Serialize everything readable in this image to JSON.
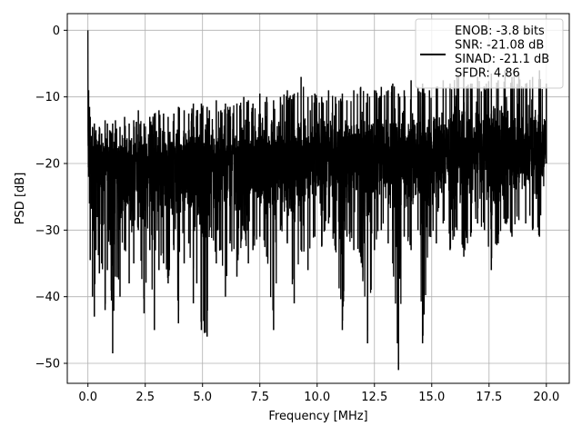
{
  "chart_data": {
    "type": "line",
    "title": "",
    "xlabel": "Frequency [MHz]",
    "ylabel": "PSD [dB]",
    "xlim": [
      -0.9,
      21.0
    ],
    "ylim": [
      -53.0,
      2.5
    ],
    "xticks": [
      0.0,
      2.5,
      5.0,
      7.5,
      10.0,
      12.5,
      15.0,
      17.5,
      20.0
    ],
    "xtick_labels": [
      "0.0",
      "2.5",
      "5.0",
      "7.5",
      "10.0",
      "12.5",
      "15.0",
      "17.5",
      "20.0"
    ],
    "yticks": [
      0,
      -10,
      -20,
      -30,
      -40,
      -50
    ],
    "ytick_labels": [
      "0",
      "−10",
      "−20",
      "−30",
      "−40",
      "−50"
    ],
    "grid": true,
    "legend": {
      "placement": "top-right",
      "lines": [
        "ENOB: -3.8 bits",
        "SNR: -21.08 dB",
        "SINAD: -21.1 dB",
        "SFDR: 4.86"
      ]
    },
    "series": [
      {
        "color": "#000000",
        "description": "dense noise floor spectrum from 0 to 20 MHz",
        "x": [
          0.0,
          0.03,
          0.07,
          0.1,
          0.2,
          0.28,
          0.35,
          0.5,
          0.6,
          0.75,
          0.85,
          0.95,
          1.08,
          1.2,
          1.4,
          1.6,
          1.8,
          2.0,
          2.2,
          2.45,
          2.7,
          2.9,
          3.1,
          3.3,
          3.5,
          3.75,
          3.95,
          4.2,
          4.4,
          4.6,
          4.75,
          4.95,
          5.2,
          5.3,
          5.6,
          5.8,
          6.0,
          6.2,
          6.5,
          6.8,
          7.0,
          7.2,
          7.5,
          7.8,
          8.1,
          8.4,
          8.7,
          9.0,
          9.3,
          9.6,
          9.9,
          10.2,
          10.5,
          10.8,
          11.1,
          11.3,
          11.6,
          11.9,
          12.2,
          12.5,
          12.8,
          13.1,
          13.3,
          13.55,
          13.8,
          14.1,
          14.4,
          14.6,
          14.9,
          15.2,
          15.5,
          15.8,
          16.1,
          16.4,
          16.7,
          17.0,
          17.3,
          17.6,
          17.9,
          18.2,
          18.5,
          18.8,
          19.1,
          19.4,
          19.7,
          20.0
        ],
        "upper": [
          0.0,
          -9.0,
          -11.5,
          -13.0,
          -14.5,
          -14.0,
          -15.0,
          -14.5,
          -15.5,
          -13.5,
          -14.0,
          -15.0,
          -14.0,
          -13.5,
          -14.5,
          -13.0,
          -14.0,
          -13.5,
          -12.0,
          -14.0,
          -13.0,
          -12.5,
          -12.0,
          -12.5,
          -13.0,
          -12.5,
          -11.5,
          -12.0,
          -12.5,
          -11.0,
          -12.0,
          -11.0,
          -11.5,
          -12.0,
          -10.5,
          -12.0,
          -11.0,
          -11.5,
          -11.0,
          -10.0,
          -10.5,
          -11.0,
          -9.5,
          -10.0,
          -10.5,
          -10.0,
          -9.0,
          -9.5,
          -7.0,
          -10.0,
          -9.5,
          -10.0,
          -9.0,
          -10.0,
          -9.5,
          -10.5,
          -9.0,
          -8.5,
          -9.5,
          -9.0,
          -8.5,
          -9.0,
          -8.0,
          -9.5,
          -9.0,
          -7.5,
          -8.5,
          -8.0,
          -9.0,
          -8.5,
          -7.5,
          -8.0,
          -7.0,
          -6.5,
          -8.0,
          -7.0,
          -8.5,
          -6.5,
          -7.5,
          -6.0,
          -7.0,
          -6.5,
          -8.0,
          -7.0,
          -6.0,
          -8.0
        ],
        "lower": [
          -26.0,
          -22.0,
          -26.0,
          -34.5,
          -40.0,
          -43.0,
          -33.0,
          -36.5,
          -35.0,
          -42.0,
          -36.0,
          -30.0,
          -48.5,
          -37.0,
          -40.0,
          -33.0,
          -38.0,
          -35.0,
          -30.0,
          -42.5,
          -33.0,
          -45.0,
          -36.0,
          -35.0,
          -38.0,
          -33.0,
          -44.0,
          -35.0,
          -32.0,
          -41.0,
          -38.0,
          -45.0,
          -46.0,
          -30.0,
          -35.0,
          -33.0,
          -40.0,
          -32.0,
          -37.0,
          -30.0,
          -35.0,
          -33.0,
          -31.0,
          -34.0,
          -45.0,
          -30.0,
          -32.0,
          -41.0,
          -33.0,
          -36.0,
          -31.0,
          -32.5,
          -29.0,
          -33.0,
          -45.0,
          -31.0,
          -33.0,
          -34.0,
          -47.0,
          -33.0,
          -30.0,
          -32.0,
          -35.0,
          -51.0,
          -31.0,
          -33.0,
          -30.0,
          -47.0,
          -31.0,
          -32.0,
          -29.0,
          -33.0,
          -30.0,
          -34.0,
          -31.0,
          -29.0,
          -30.0,
          -36.0,
          -32.0,
          -29.0,
          -31.0,
          -28.5,
          -29.0,
          -30.0,
          -31.0,
          -20.0
        ]
      }
    ]
  }
}
